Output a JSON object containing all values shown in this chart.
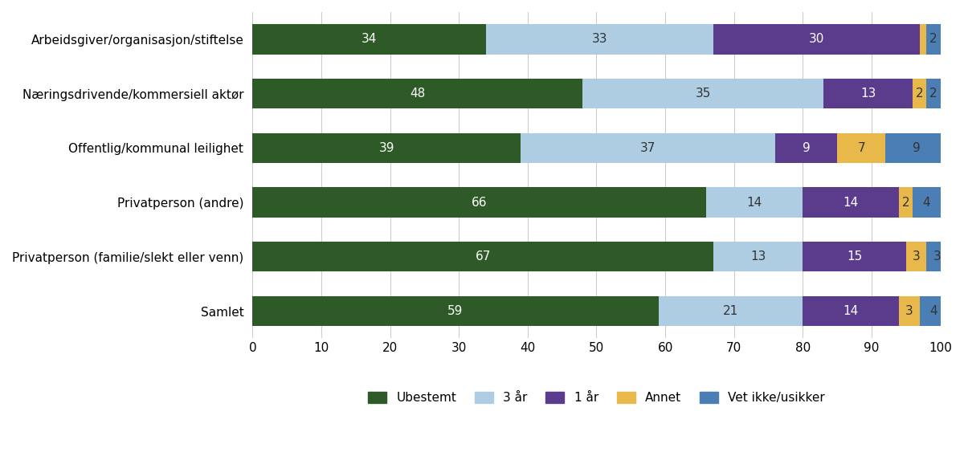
{
  "categories": [
    "Arbeidsgiver/organisasjon/stiftelse",
    "Næringsdrivende/kommersiell aktør",
    "Offentlig/kommunal leilighet",
    "Privatperson (andre)",
    "Privatperson (familie/slekt eller venn)",
    "Samlet"
  ],
  "series": {
    "Ubestemt": [
      34,
      48,
      39,
      66,
      67,
      59
    ],
    "3 år": [
      33,
      35,
      37,
      14,
      13,
      21
    ],
    "1 år": [
      30,
      13,
      9,
      14,
      15,
      14
    ],
    "Annet": [
      1,
      2,
      7,
      2,
      3,
      3
    ],
    "Vet ikke/usikker": [
      2,
      2,
      9,
      4,
      3,
      4
    ]
  },
  "colors": {
    "Ubestemt": "#2d5a27",
    "3 år": "#aecde3",
    "1 år": "#5b3b8c",
    "Annet": "#e8b84b",
    "Vet ikke/usikker": "#4a7eb5"
  },
  "xlim": [
    0,
    100
  ],
  "xticks": [
    0,
    10,
    20,
    30,
    40,
    50,
    60,
    70,
    80,
    90,
    100
  ],
  "bar_height": 0.55,
  "background_color": "#ffffff",
  "fontsize_bar": 11,
  "fontsize_ytick": 11,
  "fontsize_xtick": 11,
  "fontsize_legend": 11
}
